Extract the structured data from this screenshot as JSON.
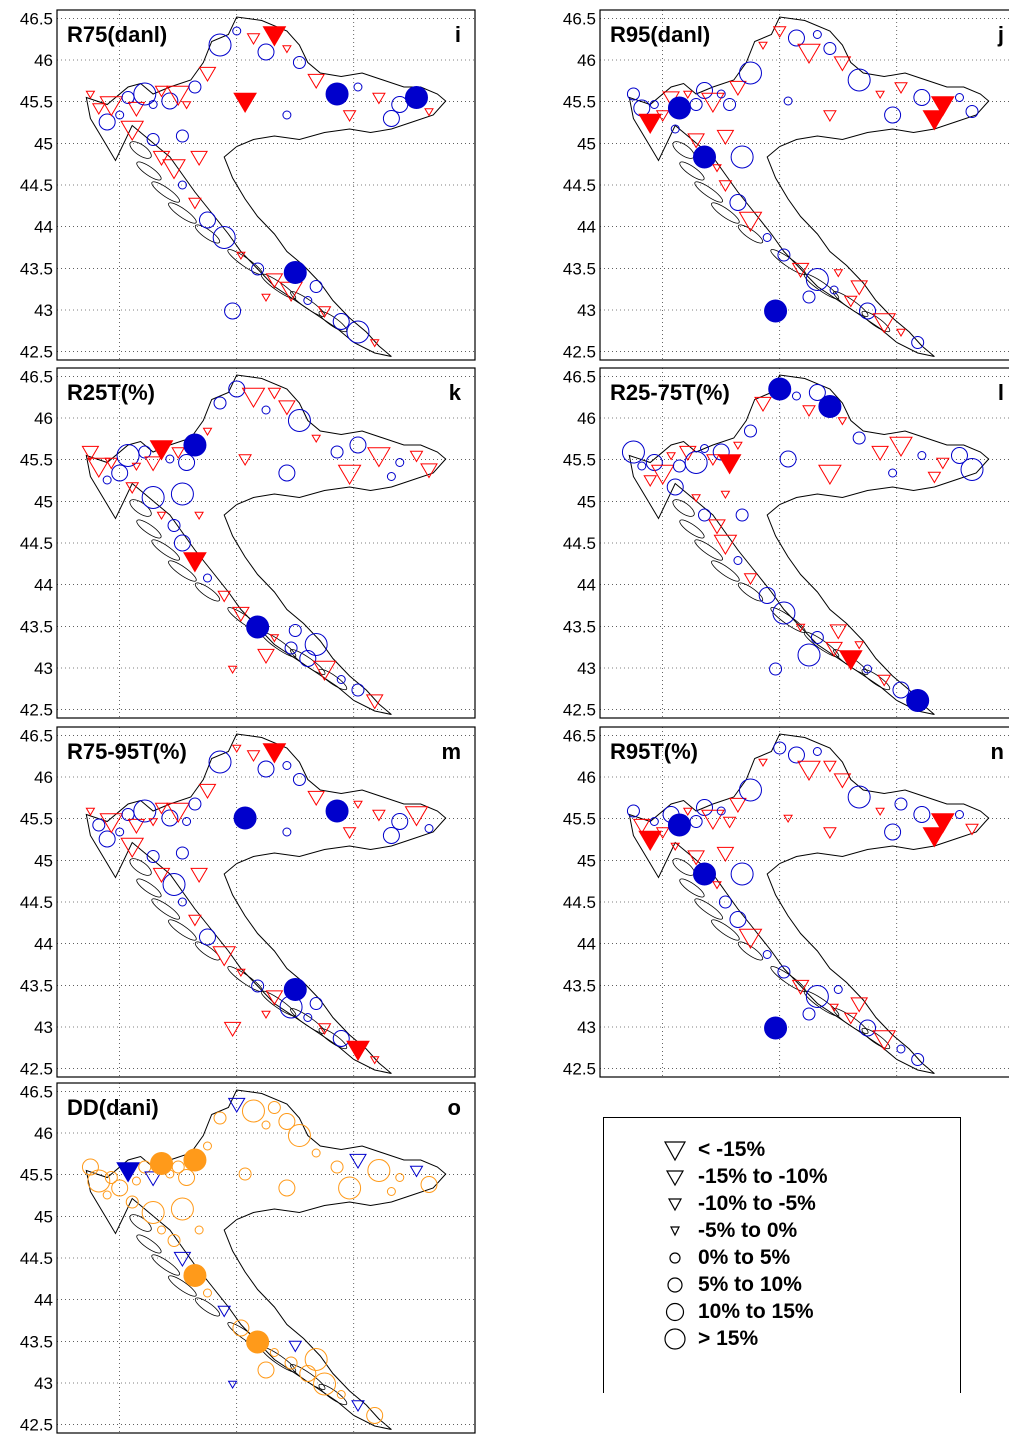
{
  "panels": [
    {
      "title": "R75(danl)",
      "letter": "i"
    },
    {
      "title": "R95(danl)",
      "letter": "j"
    },
    {
      "title": "R25T(%)",
      "letter": "k"
    },
    {
      "title": "R25-75T(%)",
      "letter": "l"
    },
    {
      "title": "R75-95T(%)",
      "letter": "m"
    },
    {
      "title": "R95T(%)",
      "letter": "n"
    },
    {
      "title": "DD(dani)",
      "letter": "o"
    }
  ],
  "axis": {
    "y_ticks": [
      "46.5",
      "46",
      "45.5",
      "45",
      "44.5",
      "44",
      "43.5",
      "43",
      "42.5"
    ],
    "lat_range": [
      42.4,
      46.6
    ]
  },
  "legend": {
    "items": [
      {
        "label": "< -15%",
        "symbol": "triangle",
        "level": 4
      },
      {
        "label": "-15% to -10%",
        "symbol": "triangle",
        "level": 3
      },
      {
        "label": "-10% to -5%",
        "symbol": "triangle",
        "level": 2
      },
      {
        "label": "-5% to 0%",
        "symbol": "triangle",
        "level": 1
      },
      {
        "label": "0% to 5%",
        "symbol": "circle",
        "level": 1
      },
      {
        "label": "5% to 10%",
        "symbol": "circle",
        "level": 2
      },
      {
        "label": "10% to 15%",
        "symbol": "circle",
        "level": 3
      },
      {
        "label": "> 15%",
        "symbol": "circle",
        "level": 4
      }
    ]
  },
  "colors": {
    "positive": "#0000cc",
    "negative": "#ff0000",
    "dd_positive": "#ff9a1a",
    "dd_negative": "#0000cc",
    "outline": "#000000"
  }
}
